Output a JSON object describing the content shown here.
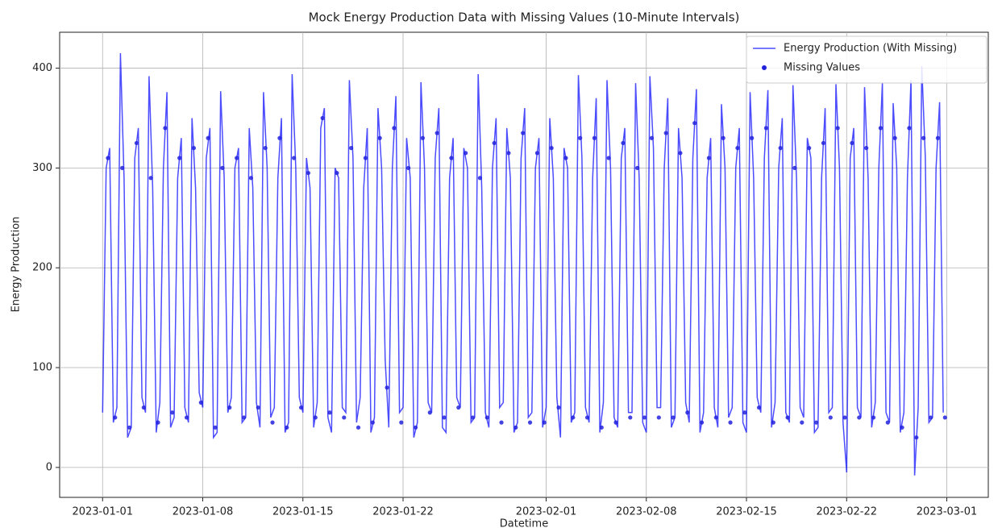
{
  "chart_data": {
    "type": "line",
    "title": "Mock Energy Production Data with Missing Values (10-Minute Intervals)",
    "x_label": "Datetime",
    "y_label": "Energy Production",
    "xlim": [
      -3,
      61.9
    ],
    "ylim": [
      -30,
      436
    ],
    "xticks": [
      {
        "value": 0,
        "label": "2023-01-01"
      },
      {
        "value": 7,
        "label": "2023-01-08"
      },
      {
        "value": 14,
        "label": "2023-01-15"
      },
      {
        "value": 21,
        "label": "2023-01-22"
      },
      {
        "value": 31,
        "label": "2023-02-01"
      },
      {
        "value": 38,
        "label": "2023-02-08"
      },
      {
        "value": 45,
        "label": "2023-02-15"
      },
      {
        "value": 52,
        "label": "2023-02-22"
      },
      {
        "value": 59,
        "label": "2023-03-01"
      }
    ],
    "yticks": [
      0,
      100,
      200,
      300,
      400
    ],
    "grid": true,
    "legend": "upper right",
    "series": [
      {
        "name": "Energy Production (With Missing)",
        "type": "line",
        "color": "#0000ff",
        "x": [
          0,
          0.25,
          0.5,
          0.75,
          1,
          1.25,
          1.5,
          1.75,
          2,
          2.25,
          2.5,
          2.75,
          3,
          3.25,
          3.5,
          3.75,
          4,
          4.25,
          4.5,
          4.75,
          5,
          5.25,
          5.5,
          5.75,
          6,
          6.25,
          6.5,
          6.75,
          7,
          7.25,
          7.5,
          7.75,
          8,
          8.25,
          8.5,
          8.75,
          9,
          9.25,
          9.5,
          9.75,
          10,
          10.25,
          10.5,
          10.75,
          11,
          11.25,
          11.5,
          11.75,
          12,
          12.25,
          12.5,
          12.75,
          13,
          13.25,
          13.5,
          13.75,
          14,
          14.25,
          14.5,
          14.75,
          15,
          15.25,
          15.5,
          15.75,
          16,
          16.25,
          16.5,
          16.75,
          17,
          17.25,
          17.5,
          17.75,
          18,
          18.25,
          18.5,
          18.75,
          19,
          19.25,
          19.5,
          19.75,
          20,
          20.25,
          20.5,
          20.75,
          21,
          21.25,
          21.5,
          21.75,
          22,
          22.25,
          22.5,
          22.75,
          23,
          23.25,
          23.5,
          23.75,
          24,
          24.25,
          24.5,
          24.75,
          25,
          25.25,
          25.5,
          25.75,
          26,
          26.25,
          26.5,
          26.75,
          27,
          27.25,
          27.5,
          27.75,
          28,
          28.25,
          28.5,
          28.75,
          29,
          29.25,
          29.5,
          29.75,
          30,
          30.25,
          30.5,
          30.75,
          31,
          31.25,
          31.5,
          31.75,
          32,
          32.25,
          32.5,
          32.75,
          33,
          33.25,
          33.5,
          33.75,
          34,
          34.25,
          34.5,
          34.75,
          35,
          35.25,
          35.5,
          35.75,
          36,
          36.25,
          36.5,
          36.75,
          37,
          37.25,
          37.5,
          37.75,
          38,
          38.25,
          38.5,
          38.75,
          39,
          39.25,
          39.5,
          39.75,
          40,
          40.25,
          40.5,
          40.75,
          41,
          41.25,
          41.5,
          41.75,
          42,
          42.25,
          42.5,
          42.75,
          43,
          43.25,
          43.5,
          43.75,
          44,
          44.25,
          44.5,
          44.75,
          45,
          45.25,
          45.5,
          45.75,
          46,
          46.25,
          46.5,
          46.75,
          47,
          47.25,
          47.5,
          47.75,
          48,
          48.25,
          48.5,
          48.75,
          49,
          49.25,
          49.5,
          49.75,
          50,
          50.25,
          50.5,
          50.75,
          51,
          51.25,
          51.5,
          51.75,
          52,
          52.25,
          52.5,
          52.75,
          53,
          53.25,
          53.5,
          53.75,
          54,
          54.25,
          54.5,
          54.75,
          55,
          55.25,
          55.5,
          55.75,
          56,
          56.25,
          56.5,
          56.75,
          57,
          57.25,
          57.5,
          57.75,
          58,
          58.25,
          58.5,
          58.75
        ],
        "values": [
          55,
          300,
          320,
          45,
          60,
          415,
          290,
          30,
          40,
          310,
          340,
          70,
          55,
          392,
          280,
          35,
          65,
          300,
          376,
          40,
          50,
          290,
          330,
          60,
          45,
          350,
          280,
          75,
          60,
          310,
          340,
          30,
          35,
          377,
          290,
          55,
          70,
          300,
          320,
          45,
          50,
          340,
          280,
          65,
          40,
          376,
          300,
          50,
          60,
          290,
          350,
          35,
          45,
          394,
          300,
          70,
          55,
          310,
          280,
          40,
          65,
          340,
          360,
          50,
          35,
          300,
          290,
          60,
          55,
          388,
          310,
          45,
          70,
          280,
          340,
          35,
          50,
          360,
          300,
          108,
          40,
          300,
          372,
          55,
          60,
          330,
          290,
          30,
          45,
          386,
          300,
          65,
          55,
          310,
          360,
          40,
          35,
          290,
          330,
          70,
          60,
          320,
          300,
          45,
          50,
          394,
          280,
          55,
          40,
          300,
          350,
          60,
          65,
          340,
          290,
          35,
          45,
          310,
          360,
          50,
          55,
          300,
          330,
          40,
          60,
          350,
          290,
          70,
          30,
          320,
          300,
          45,
          55,
          393,
          310,
          60,
          45,
          290,
          370,
          35,
          65,
          388,
          300,
          50,
          40,
          310,
          340,
          55,
          55,
          385,
          290,
          45,
          35,
          392,
          320,
          60,
          60,
          300,
          370,
          40,
          50,
          340,
          290,
          65,
          45,
          310,
          379,
          35,
          55,
          290,
          330,
          60,
          40,
          364,
          300,
          50,
          60,
          300,
          340,
          45,
          35,
          376,
          290,
          70,
          55,
          310,
          378,
          40,
          65,
          300,
          350,
          55,
          45,
          383,
          290,
          60,
          50,
          330,
          310,
          35,
          40,
          290,
          360,
          55,
          60,
          384,
          300,
          45,
          -5,
          310,
          340,
          60,
          50,
          381,
          290,
          40,
          65,
          300,
          385,
          55,
          45,
          365,
          300,
          35,
          55,
          290,
          388,
          -8,
          60,
          402,
          310,
          45,
          50,
          300,
          366,
          55
        ]
      },
      {
        "name": "Missing Values",
        "type": "scatter",
        "color": "#2222dd",
        "x": [
          0.375,
          0.875,
          1.375,
          1.875,
          2.375,
          2.875,
          3.375,
          3.875,
          4.375,
          4.875,
          5.375,
          5.875,
          6.375,
          6.875,
          7.375,
          7.875,
          8.375,
          8.875,
          9.375,
          9.875,
          10.375,
          10.875,
          11.375,
          11.875,
          12.375,
          12.875,
          13.375,
          13.875,
          14.375,
          14.875,
          15.375,
          15.875,
          16.375,
          16.875,
          17.375,
          17.875,
          18.375,
          18.875,
          19.375,
          19.875,
          20.375,
          20.875,
          21.375,
          21.875,
          22.375,
          22.875,
          23.375,
          23.875,
          24.375,
          24.875,
          25.375,
          25.875,
          26.375,
          26.875,
          27.375,
          27.875,
          28.375,
          28.875,
          29.375,
          29.875,
          30.375,
          30.875,
          31.375,
          31.875,
          32.375,
          32.875,
          33.375,
          33.875,
          34.375,
          34.875,
          35.375,
          35.875,
          36.375,
          36.875,
          37.375,
          37.875,
          38.375,
          38.875,
          39.375,
          39.875,
          40.375,
          40.875,
          41.375,
          41.875,
          42.375,
          42.875,
          43.375,
          43.875,
          44.375,
          44.875,
          45.375,
          45.875,
          46.375,
          46.875,
          47.375,
          47.875,
          48.375,
          48.875,
          49.375,
          49.875,
          50.375,
          50.875,
          51.375,
          51.875,
          52.375,
          52.875,
          53.375,
          53.875,
          54.375,
          54.875,
          55.375,
          55.875,
          56.375,
          56.875,
          57.375,
          57.875,
          58.375,
          58.875
        ],
        "values": [
          310,
          50,
          300,
          40,
          325,
          60,
          290,
          45,
          340,
          55,
          310,
          50,
          320,
          65,
          330,
          40,
          300,
          60,
          310,
          50,
          290,
          60,
          320,
          45,
          330,
          40,
          310,
          60,
          295,
          50,
          350,
          55,
          295,
          50,
          320,
          40,
          310,
          45,
          330,
          80,
          340,
          45,
          300,
          40,
          330,
          55,
          335,
          50,
          310,
          60,
          315,
          50,
          290,
          50,
          325,
          45,
          315,
          40,
          335,
          45,
          315,
          45,
          320,
          60,
          310,
          50,
          330,
          50,
          330,
          40,
          310,
          45,
          325,
          50,
          300,
          50,
          330,
          50,
          335,
          50,
          315,
          55,
          345,
          45,
          310,
          50,
          330,
          45,
          320,
          55,
          330,
          60,
          340,
          45,
          320,
          50,
          300,
          45,
          320,
          45,
          325,
          50,
          340,
          50,
          325,
          50,
          320,
          50,
          340,
          45,
          330,
          40,
          340,
          30,
          330,
          50,
          330,
          50
        ]
      }
    ]
  }
}
